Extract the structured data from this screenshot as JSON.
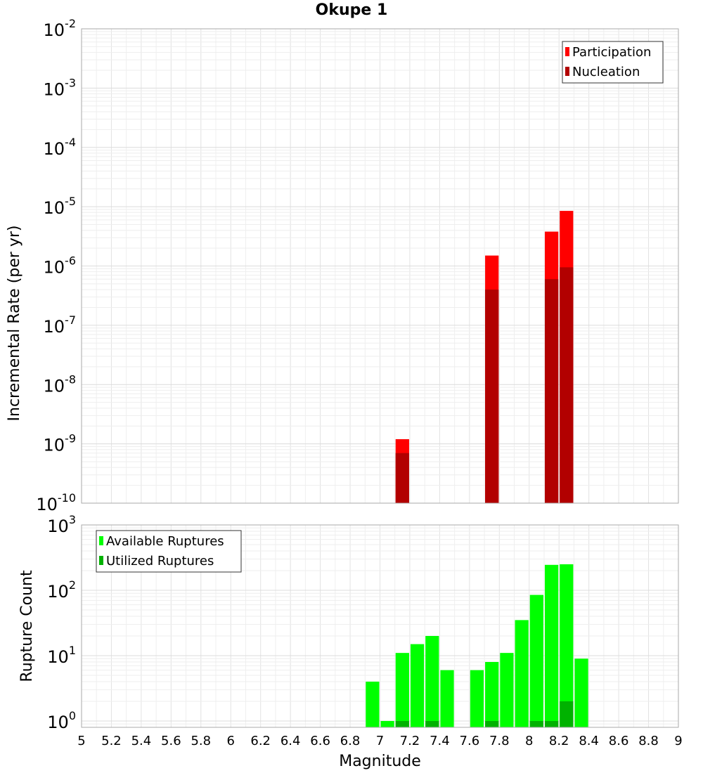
{
  "title": "Okupe 1",
  "chart_data": [
    {
      "type": "bar",
      "ylabel": "Incremental Rate (per yr)",
      "yscale": "log",
      "ylim": [
        1e-10,
        0.01
      ],
      "y_ticks": [
        {
          "base": "10",
          "exp": "-10"
        },
        {
          "base": "10",
          "exp": "-9"
        },
        {
          "base": "10",
          "exp": "-8"
        },
        {
          "base": "10",
          "exp": "-7"
        },
        {
          "base": "10",
          "exp": "-6"
        },
        {
          "base": "10",
          "exp": "-5"
        },
        {
          "base": "10",
          "exp": "-4"
        },
        {
          "base": "10",
          "exp": "-3"
        },
        {
          "base": "10",
          "exp": "-2"
        }
      ],
      "xlim": [
        5,
        9
      ],
      "grid": true,
      "legend_position": "top-right",
      "series": [
        {
          "name": "Participation",
          "color": "#ff0000",
          "points": [
            [
              7.15,
              1.2e-09
            ],
            [
              7.75,
              1.5e-06
            ],
            [
              8.15,
              3.8e-06
            ],
            [
              8.25,
              8.5e-06
            ]
          ]
        },
        {
          "name": "Nucleation",
          "color": "#b20000",
          "points": [
            [
              7.15,
              7e-10
            ],
            [
              7.75,
              4e-07
            ],
            [
              8.15,
              6e-07
            ],
            [
              8.25,
              9.5e-07
            ]
          ]
        }
      ]
    },
    {
      "type": "bar",
      "ylabel": "Rupture Count",
      "xlabel": "Magnitude",
      "yscale": "log",
      "ylim": [
        0.8,
        1000
      ],
      "y_ticks": [
        {
          "base": "10",
          "exp": "0"
        },
        {
          "base": "10",
          "exp": "1"
        },
        {
          "base": "10",
          "exp": "2"
        },
        {
          "base": "10",
          "exp": "3"
        }
      ],
      "xlim": [
        5,
        9
      ],
      "x_ticks": [
        "5",
        "5.2",
        "5.4",
        "5.6",
        "5.8",
        "6",
        "6.2",
        "6.4",
        "6.6",
        "6.8",
        "7",
        "7.2",
        "7.4",
        "7.6",
        "7.8",
        "8",
        "8.2",
        "8.4",
        "8.6",
        "8.8",
        "9"
      ],
      "grid": true,
      "legend_position": "top-left",
      "series": [
        {
          "name": "Available Ruptures",
          "color": "#00ff00",
          "points": [
            [
              6.95,
              4
            ],
            [
              7.05,
              1
            ],
            [
              7.15,
              11
            ],
            [
              7.25,
              15
            ],
            [
              7.35,
              20
            ],
            [
              7.45,
              6
            ],
            [
              7.65,
              6
            ],
            [
              7.75,
              8
            ],
            [
              7.85,
              11
            ],
            [
              7.95,
              35
            ],
            [
              8.05,
              85
            ],
            [
              8.15,
              245
            ],
            [
              8.25,
              250
            ],
            [
              8.35,
              9
            ]
          ]
        },
        {
          "name": "Utilized Ruptures",
          "color": "#00b200",
          "points": [
            [
              7.15,
              1
            ],
            [
              7.35,
              1
            ],
            [
              7.75,
              1
            ],
            [
              8.05,
              1
            ],
            [
              8.15,
              1
            ],
            [
              8.25,
              2
            ]
          ]
        }
      ]
    }
  ]
}
